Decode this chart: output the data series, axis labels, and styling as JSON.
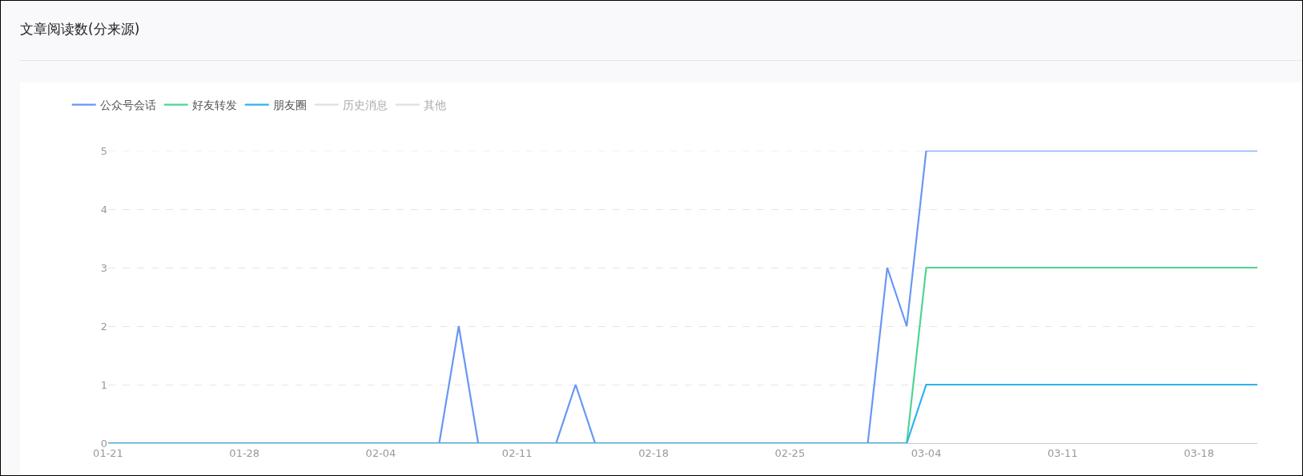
{
  "chart_data": {
    "type": "line",
    "title": "文章阅读数(分来源)",
    "categories": [
      "01-21",
      null,
      null,
      null,
      null,
      null,
      null,
      "01-28",
      null,
      null,
      null,
      null,
      null,
      null,
      "02-04",
      null,
      null,
      null,
      null,
      null,
      null,
      "02-11",
      null,
      null,
      null,
      null,
      null,
      null,
      "02-18",
      null,
      null,
      null,
      null,
      null,
      null,
      "02-25",
      null,
      null,
      null,
      null,
      null,
      null,
      "03-04",
      null,
      null,
      null,
      null,
      null,
      null,
      "03-11",
      null,
      null,
      null,
      null,
      null,
      null,
      "03-18",
      null,
      null,
      null
    ],
    "series": [
      {
        "name": "公众号会话",
        "color": "#6797f5",
        "values": [
          null,
          null,
          null,
          null,
          null,
          null,
          null,
          null,
          null,
          null,
          null,
          null,
          null,
          null,
          null,
          null,
          null,
          0,
          2,
          0,
          null,
          null,
          null,
          0,
          1,
          0,
          null,
          null,
          null,
          null,
          null,
          null,
          null,
          null,
          null,
          null,
          null,
          null,
          null,
          0,
          3,
          2,
          5,
          5,
          5,
          5,
          5,
          5,
          5,
          5,
          5,
          5,
          5,
          5,
          5,
          5,
          5,
          5,
          5,
          5
        ]
      },
      {
        "name": "好友转发",
        "color": "#4fd492",
        "values": [
          null,
          null,
          null,
          null,
          null,
          null,
          null,
          null,
          null,
          null,
          null,
          null,
          null,
          null,
          null,
          null,
          null,
          null,
          null,
          null,
          null,
          null,
          null,
          null,
          null,
          null,
          null,
          null,
          null,
          null,
          null,
          null,
          null,
          null,
          null,
          null,
          null,
          null,
          null,
          null,
          null,
          0,
          3,
          3,
          3,
          3,
          3,
          3,
          3,
          3,
          3,
          3,
          3,
          3,
          3,
          3,
          3,
          3,
          3,
          3
        ]
      },
      {
        "name": "朋友圈",
        "color": "#30b2ee",
        "values": [
          0,
          0,
          0,
          0,
          0,
          0,
          0,
          0,
          0,
          0,
          0,
          0,
          0,
          0,
          0,
          0,
          0,
          0,
          0,
          0,
          0,
          0,
          0,
          0,
          0,
          0,
          0,
          0,
          0,
          0,
          0,
          0,
          0,
          0,
          0,
          0,
          0,
          0,
          0,
          0,
          0,
          0,
          1,
          1,
          1,
          1,
          1,
          1,
          1,
          1,
          1,
          1,
          1,
          1,
          1,
          1,
          1,
          1,
          1,
          1
        ]
      },
      {
        "name": "历史消息",
        "color": "#c0c0c0",
        "values": [
          null,
          null,
          null,
          null,
          null,
          null,
          null,
          null,
          null,
          null,
          null,
          null,
          null,
          null,
          null,
          null,
          null,
          null,
          null,
          null,
          null,
          null,
          null,
          null,
          null,
          null,
          null,
          null,
          null,
          null,
          null,
          null,
          null,
          null,
          null,
          null,
          null,
          null,
          null,
          null,
          null,
          null,
          null,
          null,
          null,
          null,
          null,
          null,
          null,
          null,
          null,
          null,
          null,
          null,
          null,
          null,
          null,
          null,
          null,
          null
        ]
      },
      {
        "name": "其他",
        "color": "#c0c0c0",
        "values": [
          null,
          null,
          null,
          null,
          null,
          null,
          null,
          null,
          null,
          null,
          null,
          null,
          null,
          null,
          null,
          null,
          null,
          null,
          null,
          null,
          null,
          null,
          null,
          null,
          null,
          null,
          null,
          null,
          null,
          null,
          null,
          null,
          null,
          null,
          null,
          null,
          null,
          null,
          null,
          null,
          null,
          null,
          null,
          null,
          null,
          null,
          null,
          null,
          null,
          null,
          null,
          null,
          null,
          null,
          null,
          null,
          null,
          null,
          null,
          null
        ]
      }
    ],
    "ylim": [
      0,
      5
    ],
    "yticks": [
      0,
      1,
      2,
      3,
      4,
      5
    ],
    "grid": "y",
    "legend": "top left",
    "marker": "none",
    "line_style": "solid"
  }
}
